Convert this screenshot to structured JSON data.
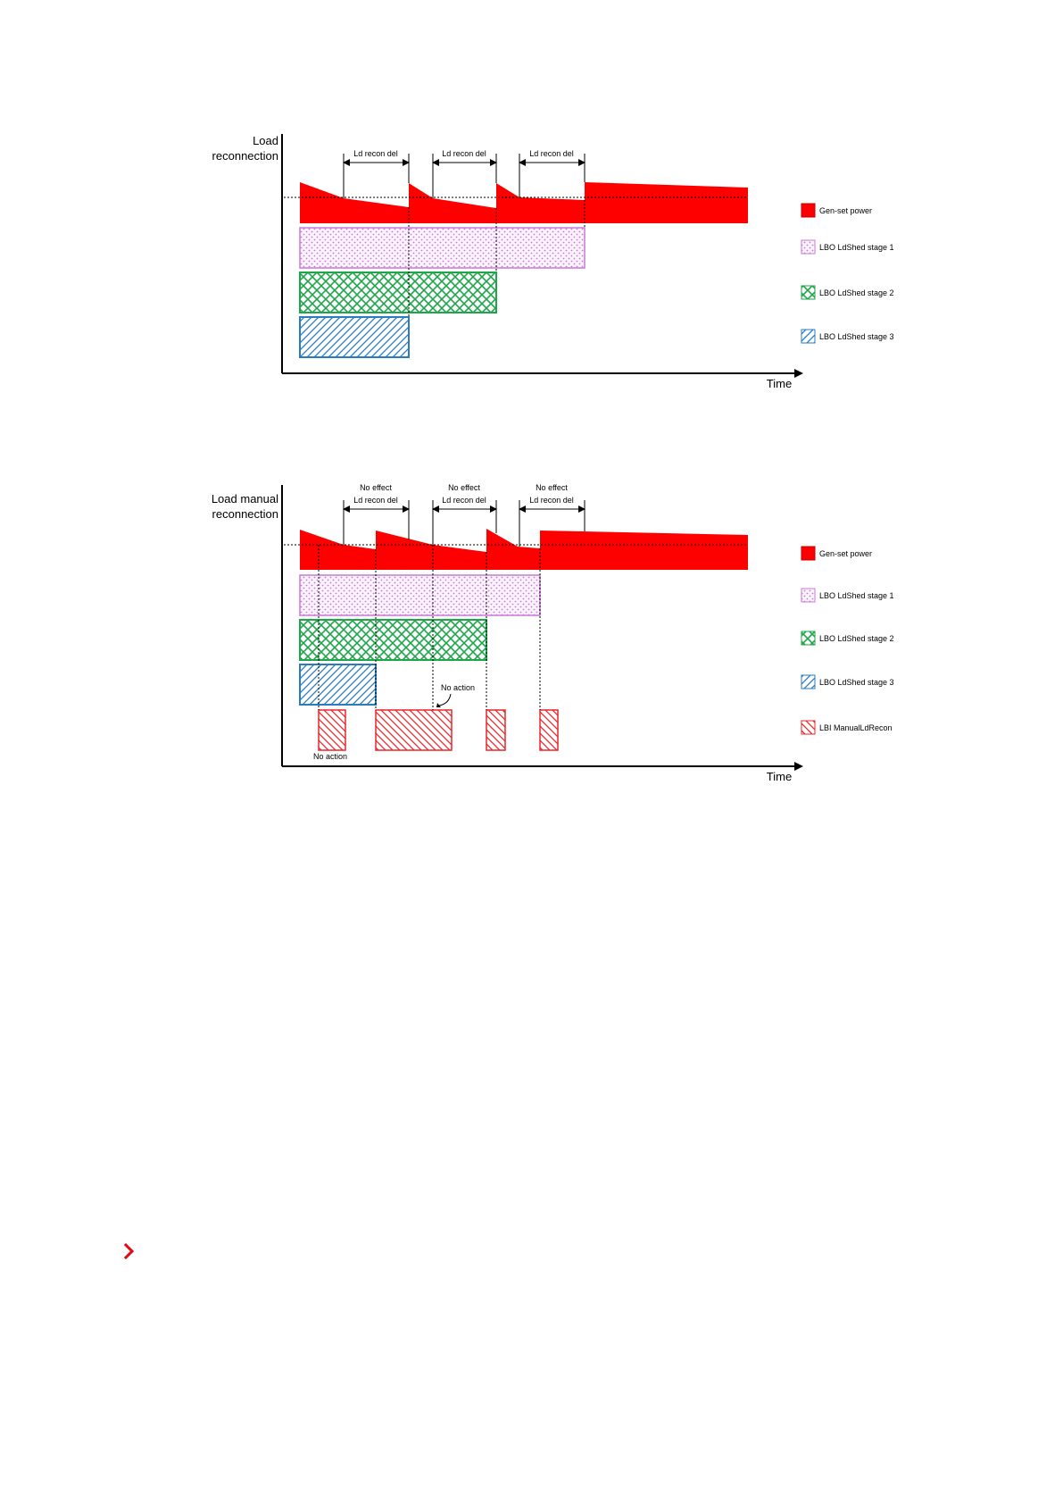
{
  "colors": {
    "genset": "#ff0000",
    "stage1": "#c879d6",
    "stage2": "#1fa64a",
    "stage3": "#2a7bbf",
    "manual": "#e8272b",
    "chevron": "#e30613"
  },
  "diagram1": {
    "y_label_lines": [
      "Load",
      "reconnection"
    ],
    "x_label": "Time",
    "delay_labels": [
      "Ld recon del",
      "Ld recon del",
      "Ld recon del"
    ],
    "legend": [
      {
        "label": "Gen-set power",
        "pattern": "solid",
        "color": "#ff0000"
      },
      {
        "label": "LBO LdShed stage 1",
        "pattern": "dots",
        "color": "#c879d6"
      },
      {
        "label": "LBO LdShed stage 2",
        "pattern": "crosshatch",
        "color": "#1fa64a"
      },
      {
        "label": "LBO LdShed stage 3",
        "pattern": "diagonal",
        "color": "#2a7bbf"
      }
    ]
  },
  "diagram2": {
    "y_label_lines": [
      "Load manual",
      "reconnection"
    ],
    "x_label": "Time",
    "delay_labels": [
      "Ld recon del",
      "Ld recon del",
      "Ld recon del"
    ],
    "no_effect_labels": [
      "No effect",
      "No effect",
      "No effect"
    ],
    "no_action_labels": [
      "No action",
      "No action"
    ],
    "legend": [
      {
        "label": "Gen-set power",
        "pattern": "solid",
        "color": "#ff0000"
      },
      {
        "label": "LBO LdShed stage 1",
        "pattern": "dots",
        "color": "#c879d6"
      },
      {
        "label": "LBO LdShed stage 2",
        "pattern": "crosshatch",
        "color": "#1fa64a"
      },
      {
        "label": "LBO LdShed stage 3",
        "pattern": "diagonal",
        "color": "#2a7bbf"
      },
      {
        "label": "LBI ManualLdRecon",
        "pattern": "antidiagonal",
        "color": "#e8272b"
      }
    ]
  },
  "footer": {
    "chevron_icon": "chevron-right-icon"
  }
}
